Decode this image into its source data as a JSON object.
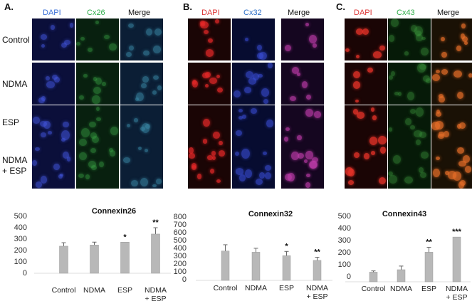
{
  "panels": [
    {
      "letter": "A.",
      "channels": [
        "DAPI",
        "Cx26",
        "Merge"
      ],
      "channel_colors": [
        "#3a6fd8",
        "#2fae4a",
        "#111111"
      ]
    },
    {
      "letter": "B.",
      "channels": [
        "DAPI",
        "Cx32",
        "Merge"
      ],
      "channel_colors": [
        "#d33",
        "#2d6fc8",
        "#111111"
      ]
    },
    {
      "letter": "C.",
      "channels": [
        "DAPI",
        "Cx43",
        "Merge"
      ],
      "channel_colors": [
        "#d33",
        "#2fae4a",
        "#111111"
      ]
    }
  ],
  "row_labels": [
    "Control",
    "NDMA",
    "ESP",
    "NDMA\n+ ESP"
  ],
  "chart_data": [
    {
      "type": "bar",
      "title": "Connexin26",
      "categories": [
        "Control",
        "NDMA",
        "ESP",
        "NDMA\n+ ESP"
      ],
      "values": [
        235,
        245,
        270,
        340
      ],
      "errors": [
        30,
        25,
        0,
        55
      ],
      "significance": [
        "",
        "",
        "*",
        "**"
      ],
      "yticks": [
        "500",
        "400",
        "300",
        "200",
        "100",
        "0"
      ],
      "ylim": [
        0,
        500
      ],
      "bar_color": "#b8b8b8"
    },
    {
      "type": "bar",
      "title": "Connexin32",
      "categories": [
        "Control",
        "NDMA",
        "ESP",
        "NDMA\n+ ESP"
      ],
      "values": [
        375,
        360,
        315,
        255
      ],
      "errors": [
        80,
        50,
        55,
        40
      ],
      "significance": [
        "",
        "",
        "*",
        "**"
      ],
      "yticks": [
        "800",
        "700",
        "600",
        "500",
        "400",
        "300",
        "200",
        "100",
        "0"
      ],
      "ylim": [
        0,
        800
      ],
      "bar_color": "#b8b8b8"
    },
    {
      "type": "bar",
      "title": "Connexin43",
      "categories": [
        "Control",
        "NDMA",
        "ESP",
        "NDMA\n+ ESP"
      ],
      "values": [
        80,
        100,
        245,
        370
      ],
      "errors": [
        10,
        30,
        40,
        0
      ],
      "significance": [
        "",
        "",
        "**",
        "***"
      ],
      "yticks": [
        "500",
        "400",
        "300",
        "200",
        "100",
        "0"
      ],
      "ylim": [
        0,
        500
      ],
      "bar_color": "#b8b8b8"
    }
  ]
}
